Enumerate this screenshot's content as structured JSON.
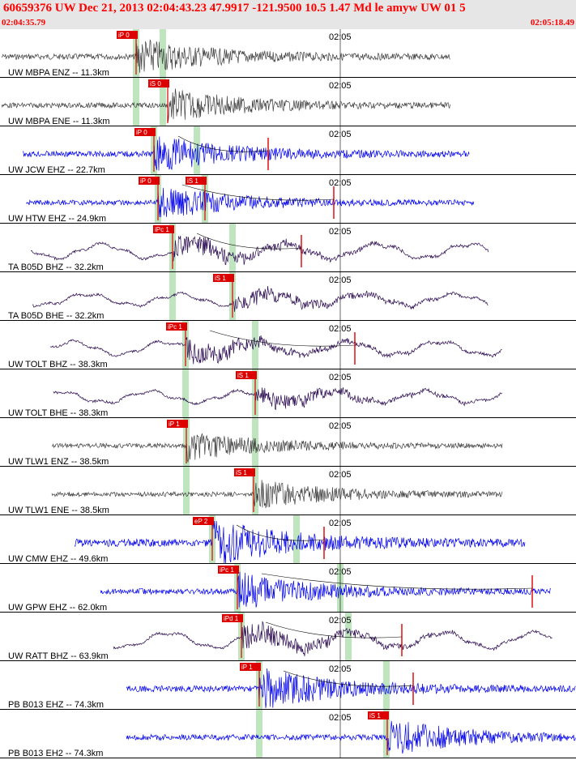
{
  "header": {
    "title": "60659376 UW Dec 21, 2013 02:04:43.23   47.9917 -121.9500 10.5 1.47 Md le amyw UW 01   5",
    "time_start": "02:04:35.79",
    "time_end": "02:05:18.49"
  },
  "colors": {
    "black": "#404040",
    "blue": "#0000ee",
    "purple": "#2a0a50",
    "pick": "#dd0000",
    "marker": "#bfe5bf"
  },
  "chart_data": {
    "type": "seismogram",
    "time_tick_label": "02:05",
    "traces": [
      {
        "label": "UW MBPA ENZ -- 11.3km",
        "color": "black",
        "start": 2,
        "end": 556,
        "amp": 10,
        "shape": "burst",
        "picks": [
          {
            "label": "iP 0",
            "t": 168
          }
        ],
        "green": [
          168,
          201
        ]
      },
      {
        "label": "UW MBPA ENE -- 11.3km",
        "color": "black",
        "start": 2,
        "end": 556,
        "amp": 9,
        "shape": "burst",
        "picks": [
          {
            "label": "iS 0",
            "t": 207
          }
        ],
        "green": [
          168,
          201
        ]
      },
      {
        "label": "UW JCW EHZ -- 22.7km",
        "color": "blue",
        "start": 28,
        "end": 580,
        "amp": 10,
        "shape": "burst",
        "picks": [
          {
            "label": "iP 0",
            "t": 190
          }
        ],
        "green": [
          190,
          243
        ],
        "red_spike": 331
      },
      {
        "label": "UW HTW EHZ -- 24.9km",
        "color": "blue",
        "start": 32,
        "end": 585,
        "amp": 9,
        "shape": "burst",
        "picks": [
          {
            "label": "iP 0",
            "t": 195
          },
          {
            "label": "iS 1",
            "t": 253
          }
        ],
        "green": [
          195,
          253
        ],
        "red_spike": 412
      },
      {
        "label": "TA B05D BHZ -- 32.2km",
        "color": "purple",
        "start": 38,
        "end": 603,
        "amp": 14,
        "shape": "wave",
        "picks": [
          {
            "label": "iPc 1",
            "t": 213
          }
        ],
        "green": [
          213,
          287
        ],
        "red_spike": 372
      },
      {
        "label": "TA B05D BHE -- 32.2km",
        "color": "purple",
        "start": 40,
        "end": 603,
        "amp": 11,
        "shape": "wave",
        "picks": [
          {
            "label": "iS 1",
            "t": 287
          }
        ],
        "green": [
          213,
          287
        ]
      },
      {
        "label": "UW TOLT BHZ -- 38.3km",
        "color": "purple",
        "start": 62,
        "end": 620,
        "amp": 13,
        "shape": "wave",
        "picks": [
          {
            "label": "iPc 1",
            "t": 229
          }
        ],
        "green": [
          229,
          315
        ],
        "red_spike": 438
      },
      {
        "label": "UW TOLT BHE -- 38.3km",
        "color": "purple",
        "start": 66,
        "end": 620,
        "amp": 11,
        "shape": "wave",
        "picks": [
          {
            "label": "iS 1",
            "t": 315
          }
        ],
        "green": [
          229,
          315
        ]
      },
      {
        "label": "UW TLW1 ENZ -- 38.5km",
        "color": "black",
        "start": 64,
        "end": 620,
        "amp": 8,
        "shape": "burst",
        "picks": [
          {
            "label": "iP 1",
            "t": 230
          }
        ],
        "green": [
          230,
          315
        ]
      },
      {
        "label": "UW TLW1 ENE -- 38.5km",
        "color": "black",
        "start": 64,
        "end": 620,
        "amp": 8,
        "shape": "burst",
        "picks": [
          {
            "label": "iS 1",
            "t": 313
          }
        ],
        "green": [
          230,
          315
        ]
      },
      {
        "label": "UW CMW EHZ -- 49.6km",
        "color": "blue",
        "start": 92,
        "end": 648,
        "amp": 13,
        "shape": "burst",
        "picks": [
          {
            "label": "eP 2",
            "t": 262
          }
        ],
        "green": [
          262,
          366
        ],
        "red_spike": 400
      },
      {
        "label": "UW GPW EHZ -- 62.0km",
        "color": "blue",
        "start": 124,
        "end": 680,
        "amp": 10,
        "shape": "burst",
        "picks": [
          {
            "label": "iPc 1",
            "t": 293
          }
        ],
        "green": [
          293,
          420
        ],
        "red_spike": 657
      },
      {
        "label": "UW RATT BHZ -- 63.9km",
        "color": "purple",
        "start": 140,
        "end": 682,
        "amp": 15,
        "shape": "wave",
        "picks": [
          {
            "label": "iPd 1",
            "t": 298
          }
        ],
        "green": [
          298,
          430
        ],
        "red_spike": 496
      },
      {
        "label": "PB B013 EHZ -- 74.3km",
        "color": "blue",
        "start": 156,
        "end": 711,
        "amp": 11,
        "shape": "burst",
        "picks": [
          {
            "label": "iP 1",
            "t": 320
          }
        ],
        "green": [
          320,
          477
        ],
        "red_spike": 510
      },
      {
        "label": "PB B013 EH2 -- 74.3km",
        "color": "blue",
        "start": 156,
        "end": 711,
        "amp": 10,
        "shape": "burst",
        "picks": [
          {
            "label": "iS 1",
            "t": 478
          }
        ],
        "green": [
          320,
          477
        ]
      }
    ]
  }
}
